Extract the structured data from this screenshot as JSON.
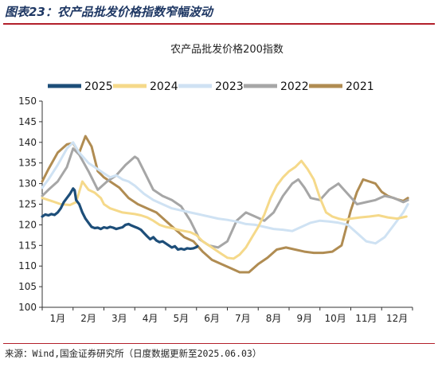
{
  "figure_title": "图表23：农产品批发价格指数窄幅波动",
  "source": "来源：Wind,国金证券研究所（日度数据更新至2025.06.03）",
  "chart_data": {
    "type": "line",
    "title": "农产品批发价格200指数",
    "xlabel": "",
    "ylabel": "",
    "ylim": [
      100,
      150
    ],
    "yticks": [
      100,
      105,
      110,
      115,
      120,
      125,
      130,
      135,
      140,
      145,
      150
    ],
    "categories": [
      "1月",
      "2月",
      "3月",
      "4月",
      "5月",
      "6月",
      "7月",
      "8月",
      "9月",
      "10月",
      "11月",
      "12月"
    ],
    "grid": false,
    "legend_position": "top",
    "series": [
      {
        "name": "2025",
        "color": "#1d4e79",
        "x": [
          0,
          0.1,
          0.2,
          0.3,
          0.4,
          0.5,
          0.6,
          0.7,
          0.8,
          0.9,
          1.0,
          1.05,
          1.1,
          1.2,
          1.3,
          1.4,
          1.5,
          1.6,
          1.7,
          1.8,
          1.9,
          2.0,
          2.1,
          2.2,
          2.3,
          2.4,
          2.5,
          2.6,
          2.7,
          2.8,
          2.9,
          3.0,
          3.1,
          3.2,
          3.3,
          3.4,
          3.5,
          3.6,
          3.7,
          3.8,
          3.9,
          4.0,
          4.1,
          4.2,
          4.3,
          4.4,
          4.5,
          4.6,
          4.7,
          4.8,
          4.9,
          5.0,
          5.03
        ],
        "values": [
          122,
          122.5,
          122.3,
          122.6,
          122.4,
          123,
          124,
          125.5,
          126.5,
          127.5,
          128.8,
          128.4,
          126,
          125,
          123,
          121.5,
          120.5,
          119.5,
          119.2,
          119.3,
          119,
          119.4,
          119.2,
          119.5,
          119.3,
          119,
          119.2,
          119.4,
          120,
          120.2,
          119.8,
          119.5,
          119.2,
          118.8,
          118,
          117.2,
          116.5,
          117,
          116.2,
          115.8,
          116,
          115.5,
          115,
          114.5,
          114.8,
          114,
          114.2,
          114,
          114.3,
          114.2,
          114.3,
          114.6,
          114.8
        ]
      },
      {
        "name": "2024",
        "color": "#f5d98a",
        "x": [
          0,
          0.3,
          0.6,
          0.9,
          1.1,
          1.3,
          1.5,
          1.7,
          1.9,
          2.0,
          2.2,
          2.4,
          2.6,
          2.8,
          3.0,
          3.2,
          3.4,
          3.6,
          3.8,
          4.0,
          4.2,
          4.4,
          4.6,
          4.8,
          5.0,
          5.2,
          5.4,
          5.6,
          5.8,
          6.0,
          6.2,
          6.4,
          6.6,
          6.8,
          7.0,
          7.2,
          7.4,
          7.6,
          7.8,
          8.0,
          8.2,
          8.4,
          8.6,
          8.8,
          9.0,
          9.2,
          9.4,
          9.6,
          9.8,
          10.0,
          10.3,
          10.6,
          10.9,
          11.2,
          11.5,
          11.8
        ],
        "values": [
          126.5,
          125.8,
          125,
          124.8,
          125.5,
          130.5,
          128.5,
          127.8,
          126.5,
          125,
          124,
          123.5,
          123,
          122.8,
          122.6,
          122.3,
          121.8,
          121,
          120,
          119.5,
          119.2,
          118.8,
          118.5,
          118.2,
          117.5,
          116,
          115,
          114,
          113,
          112,
          111.8,
          112.8,
          114.5,
          117,
          119.5,
          122.5,
          126.5,
          129.5,
          131.5,
          133,
          134,
          135.5,
          133.5,
          131,
          126.5,
          123,
          122,
          121.5,
          121.2,
          121.5,
          121.8,
          122,
          122.3,
          121.8,
          121.5,
          122
        ]
      },
      {
        "name": "2023",
        "color": "#cfe2f3",
        "x": [
          0,
          0.2,
          0.5,
          0.8,
          1.0,
          1.2,
          1.5,
          1.8,
          2.0,
          2.2,
          2.4,
          2.6,
          2.8,
          3.0,
          3.3,
          3.6,
          3.9,
          4.2,
          4.5,
          4.8,
          5.1,
          5.4,
          5.7,
          6.0,
          6.3,
          6.6,
          6.9,
          7.2,
          7.5,
          7.8,
          8.1,
          8.4,
          8.7,
          9.0,
          9.3,
          9.6,
          9.9,
          10.2,
          10.5,
          10.8,
          11.1,
          11.4,
          11.7,
          11.85
        ],
        "values": [
          129,
          131,
          134.5,
          138.5,
          140,
          137.5,
          135,
          133.5,
          132.5,
          131.5,
          132,
          131,
          130.5,
          129.5,
          127.5,
          126,
          125,
          124,
          123.5,
          123,
          122.5,
          122,
          121.5,
          121.2,
          120.8,
          120.2,
          120,
          119.5,
          119,
          118.8,
          118.5,
          119.5,
          120.5,
          121,
          120.8,
          120.5,
          120,
          118,
          116,
          115.5,
          117,
          120,
          123,
          125
        ]
      },
      {
        "name": "2022",
        "color": "#a6a6a6",
        "x": [
          0,
          0.2,
          0.5,
          0.8,
          1.0,
          1.2,
          1.5,
          1.8,
          2.1,
          2.4,
          2.7,
          3.0,
          3.1,
          3.3,
          3.6,
          3.9,
          4.2,
          4.5,
          4.8,
          5.1,
          5.4,
          5.7,
          6.0,
          6.3,
          6.6,
          6.9,
          7.2,
          7.5,
          7.8,
          8.1,
          8.3,
          8.5,
          8.7,
          9.0,
          9.3,
          9.6,
          9.9,
          10.2,
          10.5,
          10.8,
          11.1,
          11.4,
          11.7,
          11.85
        ],
        "values": [
          127,
          128.5,
          130.5,
          134,
          138.5,
          137,
          133,
          128.5,
          130.5,
          132,
          134.5,
          136.5,
          136,
          133,
          128.5,
          127,
          126,
          124.5,
          121,
          116.5,
          115,
          114.5,
          116,
          121,
          123,
          122,
          121,
          123,
          127,
          130,
          131,
          129,
          126.5,
          126,
          128.5,
          130,
          127.5,
          125,
          125.5,
          126,
          127,
          126.5,
          125.5,
          126
        ]
      },
      {
        "name": "2021",
        "color": "#b08c52",
        "x": [
          0,
          0.2,
          0.5,
          0.8,
          1.0,
          1.2,
          1.4,
          1.6,
          1.8,
          2.0,
          2.2,
          2.5,
          2.8,
          3.1,
          3.4,
          3.7,
          4.0,
          4.3,
          4.6,
          4.9,
          5.2,
          5.5,
          5.8,
          6.1,
          6.4,
          6.7,
          7.0,
          7.3,
          7.6,
          7.9,
          8.2,
          8.5,
          8.8,
          9.1,
          9.4,
          9.7,
          10.0,
          10.2,
          10.4,
          10.6,
          10.8,
          11.0,
          11.2,
          11.5,
          11.7,
          11.85
        ],
        "values": [
          130.5,
          133.5,
          137.5,
          139.5,
          139.8,
          137.5,
          141.5,
          139,
          133,
          131.5,
          130.5,
          129,
          126.5,
          125,
          124,
          123,
          121,
          119,
          117,
          116,
          113.5,
          111.5,
          110.5,
          109.5,
          108.5,
          108.5,
          110.5,
          112,
          114,
          114.5,
          114,
          113.5,
          113.2,
          113.2,
          113.5,
          115,
          123.5,
          128,
          131,
          130.5,
          130,
          128,
          127,
          126.2,
          125.8,
          126.5
        ]
      }
    ]
  }
}
